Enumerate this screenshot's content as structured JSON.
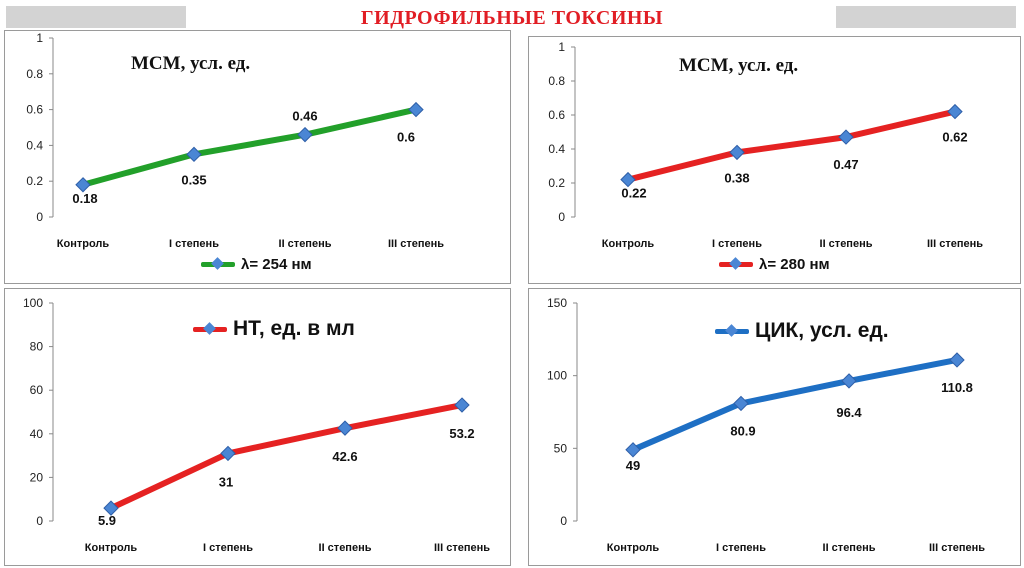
{
  "page_title": "ГИДРОФИЛЬНЫЕ ТОКСИНЫ",
  "chart_data": [
    {
      "id": "msm254",
      "type": "line",
      "title": "МСМ, усл. ед.",
      "categories": [
        "Контроль",
        "I степень",
        "II степень",
        "III степень"
      ],
      "series": [
        {
          "name": "λ= 254 нм",
          "values": [
            0.18,
            0.35,
            0.46,
            0.6
          ],
          "color": "#22a02a"
        }
      ],
      "data_labels": [
        "0.18",
        "0.35",
        "0.46",
        "0.6"
      ],
      "y_ticks": [
        "0",
        "0.2",
        "0.4",
        "0.6",
        "0.8",
        "1"
      ],
      "ylim": [
        0,
        1
      ],
      "legend_placement": "bottom",
      "grid": false
    },
    {
      "id": "msm280",
      "type": "line",
      "title": "МСМ, усл. ед.",
      "categories": [
        "Контроль",
        "I степень",
        "II степень",
        "III степень"
      ],
      "series": [
        {
          "name": "λ= 280 нм",
          "values": [
            0.22,
            0.38,
            0.47,
            0.62
          ],
          "color": "#e52222"
        }
      ],
      "data_labels": [
        "0.22",
        "0.38",
        "0.47",
        "0.62"
      ],
      "y_ticks": [
        "0",
        "0.2",
        "0.4",
        "0.6",
        "0.8",
        "1"
      ],
      "ylim": [
        0,
        1
      ],
      "legend_placement": "bottom",
      "grid": false
    },
    {
      "id": "nt",
      "type": "line",
      "title": "",
      "categories": [
        "Контроль",
        "I степень",
        "II степень",
        "III степень"
      ],
      "series": [
        {
          "name": "НТ, ед. в мл",
          "values": [
            5.9,
            31,
            42.6,
            53.2
          ],
          "color": "#e52222"
        }
      ],
      "data_labels": [
        "5.9",
        "31",
        "42.6",
        "53.2"
      ],
      "y_ticks": [
        "0",
        "20",
        "40",
        "60",
        "80",
        "100"
      ],
      "ylim": [
        0,
        100
      ],
      "legend_placement": "top",
      "grid": false
    },
    {
      "id": "cik",
      "type": "line",
      "title": "",
      "categories": [
        "Контроль",
        "I степень",
        "II степень",
        "III степень"
      ],
      "series": [
        {
          "name": "ЦИК, усл. ед.",
          "values": [
            49,
            80.9,
            96.4,
            110.8
          ],
          "color": "#1e6fc4"
        }
      ],
      "data_labels": [
        "49",
        "80.9",
        "96.4",
        "110.8"
      ],
      "y_ticks": [
        "0",
        "50",
        "100",
        "150"
      ],
      "ylim": [
        0,
        150
      ],
      "legend_placement": "top",
      "grid": false
    }
  ]
}
